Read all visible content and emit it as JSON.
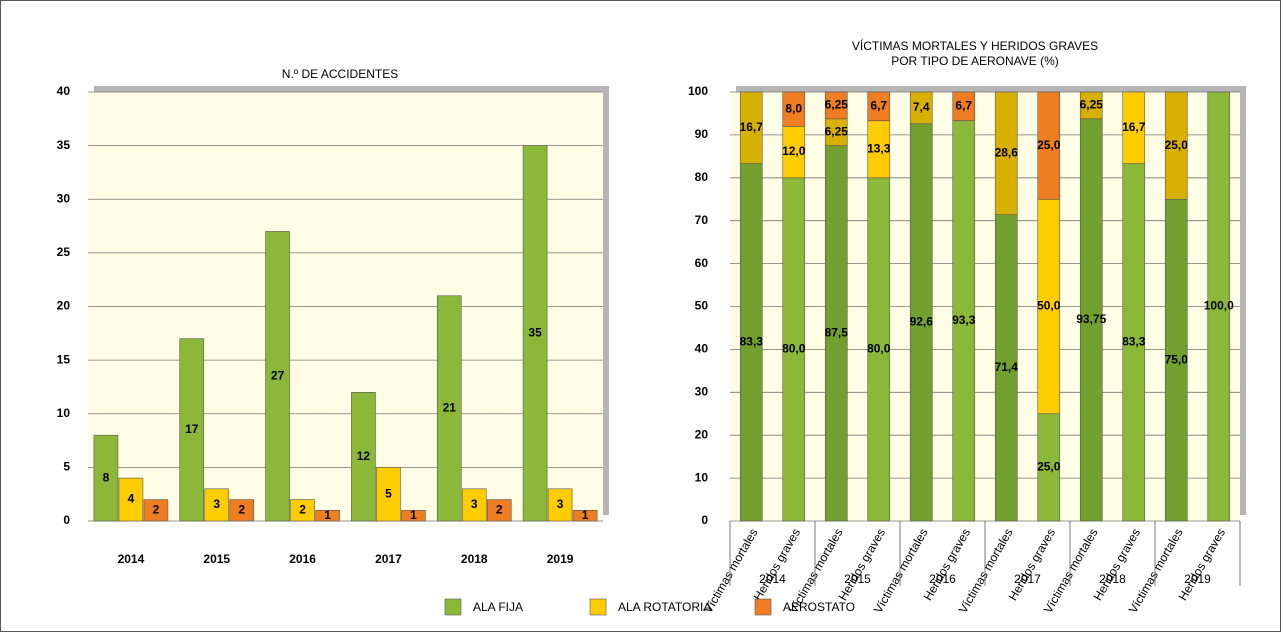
{
  "chart_data": [
    {
      "type": "bar",
      "title": "N.º DE ACCIDENTES",
      "categories": [
        "2014",
        "2015",
        "2016",
        "2017",
        "2018",
        "2019"
      ],
      "series": [
        {
          "name": "ALA FIJA",
          "color": "#8cb83a",
          "values": [
            8,
            17,
            27,
            12,
            21,
            35
          ]
        },
        {
          "name": "ALA ROTATORIA",
          "color": "#ffcc00",
          "values": [
            4,
            3,
            2,
            5,
            3,
            3
          ]
        },
        {
          "name": "AEROSTATO",
          "color": "#ef7d22",
          "values": [
            2,
            2,
            1,
            1,
            2,
            1
          ]
        }
      ],
      "ylim": [
        0,
        40
      ],
      "yticks": [
        0,
        5,
        10,
        15,
        20,
        25,
        30,
        35,
        40
      ],
      "grid": true
    },
    {
      "type": "stacked_bar",
      "title": [
        "VÍCTIMAS MORTALES Y HERIDOS GRAVES",
        "POR TIPO DE AERONAVE (%)"
      ],
      "categories": [
        "Víctimas mortales",
        "Heridos graves",
        "Víctimas mortales",
        "Heridos graves",
        "Víctimas mortales",
        "Heridos graves",
        "Víctimas mortales",
        "Heridos graves",
        "Víctimas mortales",
        "Heridos graves",
        "Víctimas mortales",
        "Heridos graves"
      ],
      "groups": [
        "2014",
        "2015",
        "2016",
        "2017",
        "2018",
        "2019"
      ],
      "series": [
        {
          "color": "#8cb83a",
          "dark_color": "#72a02e",
          "values": [
            83.3,
            80.0,
            87.5,
            80.0,
            92.6,
            93.3,
            71.4,
            25.0,
            93.75,
            83.3,
            75.0,
            100.0
          ],
          "value_labels": [
            "83,3",
            "80,0",
            "87,5",
            "80,0",
            "92,6",
            "93,3",
            "71,4",
            "25,0",
            "93,75",
            "83,3",
            "75,0",
            "100,0"
          ]
        },
        {
          "color": "#ffcc00",
          "dark_color": "#d8b000",
          "values": [
            16.7,
            12.0,
            6.25,
            13.3,
            7.4,
            null,
            28.6,
            50.0,
            6.25,
            16.7,
            25.0,
            null
          ],
          "value_labels": [
            "16,7",
            "12,0",
            "6,25",
            "13,3",
            "7,4",
            null,
            "28,6",
            "50,0",
            "6,25",
            "16,7",
            "25,0",
            null
          ]
        },
        {
          "color": "#ef7d22",
          "dark_color": "#ef7d22",
          "values": [
            null,
            8.0,
            6.25,
            6.7,
            null,
            6.7,
            null,
            25.0,
            null,
            null,
            null,
            null
          ],
          "value_labels": [
            null,
            "8,0",
            "6,25",
            "6,7",
            null,
            "6,7",
            null,
            "25,0",
            null,
            null,
            null,
            null
          ]
        }
      ],
      "ylim": [
        0,
        100
      ],
      "yticks": [
        0,
        10,
        20,
        30,
        40,
        50,
        60,
        70,
        80,
        90,
        100
      ],
      "grid": true
    }
  ]
}
